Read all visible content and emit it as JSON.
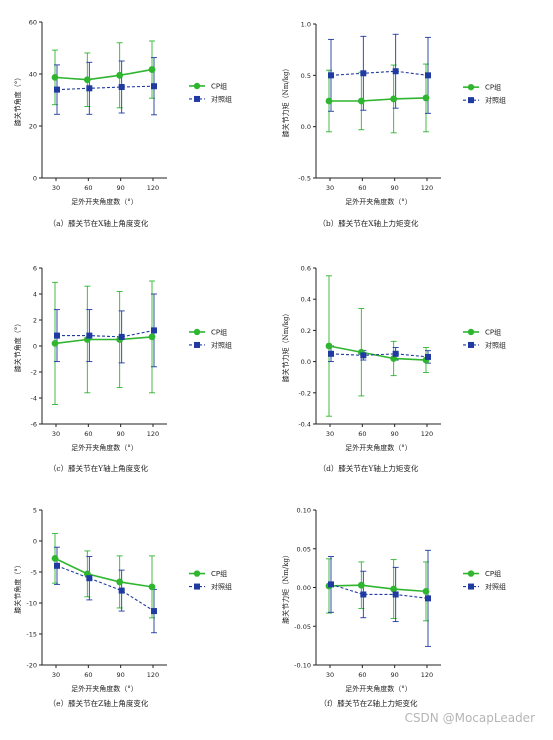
{
  "colors": {
    "cp": "#2fb52f",
    "control": "#1f3aa0",
    "axis": "#222222"
  },
  "legend": {
    "cp": "CP组",
    "control": "对照组"
  },
  "watermark": "CSDN @MocapLeader",
  "chart_data": [
    {
      "type": "line",
      "caption": "（a）膝关节在X轴上角度变化",
      "xlabel": "足外开夹角度数（°）",
      "ylabel": "膝关节角度（°）",
      "categories": [
        "30",
        "60",
        "90",
        "120"
      ],
      "ylim": [
        0,
        60
      ],
      "yticks": [
        0,
        20,
        40,
        60
      ],
      "ytick_labels": [
        "0",
        "20",
        "40",
        "60"
      ],
      "legend_position": "right",
      "series": [
        {
          "name": "CP组",
          "values": [
            38.7,
            37.8,
            39.5,
            41.7
          ],
          "errors": [
            10.5,
            10.3,
            12.5,
            11.0
          ]
        },
        {
          "name": "对照组",
          "values": [
            34.0,
            34.5,
            35.0,
            35.3
          ],
          "errors": [
            9.5,
            10.0,
            10.0,
            11.0
          ]
        }
      ]
    },
    {
      "type": "line",
      "caption": "（b）膝关节在X轴上力矩变化",
      "xlabel": "足外开夹角度数（°）",
      "ylabel": "膝关节力矩（Nm/kg）",
      "categories": [
        "30",
        "60",
        "90",
        "120"
      ],
      "ylim": [
        -0.5,
        1.0
      ],
      "yticks": [
        -0.5,
        0.0,
        0.5,
        1.0
      ],
      "ytick_labels": [
        "-0.5",
        "0.0",
        "0.5",
        "1.0"
      ],
      "legend_position": "right",
      "series": [
        {
          "name": "CP组",
          "values": [
            0.25,
            0.25,
            0.27,
            0.28
          ],
          "errors": [
            0.3,
            0.28,
            0.33,
            0.33
          ]
        },
        {
          "name": "对照组",
          "values": [
            0.5,
            0.52,
            0.54,
            0.5
          ],
          "errors": [
            0.35,
            0.36,
            0.36,
            0.37
          ]
        }
      ]
    },
    {
      "type": "line",
      "caption": "（c）膝关节在Y轴上角度变化",
      "xlabel": "足外开夹角度数（°）",
      "ylabel": "膝关节角度（°）",
      "categories": [
        "30",
        "60",
        "90",
        "120"
      ],
      "ylim": [
        -6,
        6
      ],
      "yticks": [
        -6,
        -4,
        -2,
        0,
        2,
        4,
        6
      ],
      "ytick_labels": [
        "-6",
        "-4",
        "-2",
        "0",
        "2",
        "4",
        "6"
      ],
      "legend_position": "right",
      "series": [
        {
          "name": "CP组",
          "values": [
            0.2,
            0.5,
            0.5,
            0.7
          ],
          "errors": [
            4.7,
            4.1,
            3.7,
            4.3
          ]
        },
        {
          "name": "对照组",
          "values": [
            0.8,
            0.8,
            0.7,
            1.2
          ],
          "errors": [
            2.0,
            2.0,
            2.0,
            2.8
          ]
        }
      ]
    },
    {
      "type": "line",
      "caption": "（d）膝关节在Y轴上力矩变化",
      "xlabel": "足外开夹角度数（°）",
      "ylabel": "膝关节力矩（Nm/kg）",
      "categories": [
        "30",
        "60",
        "90",
        "120"
      ],
      "ylim": [
        -0.4,
        0.6
      ],
      "yticks": [
        -0.4,
        -0.2,
        0.0,
        0.2,
        0.4,
        0.6
      ],
      "ytick_labels": [
        "-0.4",
        "-0.2",
        "0.0",
        "0.2",
        "0.4",
        "0.6"
      ],
      "legend_position": "right",
      "series": [
        {
          "name": "CP组",
          "values": [
            0.1,
            0.06,
            0.02,
            0.01
          ],
          "errors": [
            0.45,
            0.28,
            0.11,
            0.08
          ]
        },
        {
          "name": "对照组",
          "values": [
            0.05,
            0.04,
            0.05,
            0.03
          ],
          "errors": [
            0.05,
            0.03,
            0.04,
            0.04
          ]
        }
      ]
    },
    {
      "type": "line",
      "caption": "（e）膝关节在Z轴上角度变化",
      "xlabel": "足外开夹角度数（°）",
      "ylabel": "膝关节角度（°）",
      "categories": [
        "30",
        "60",
        "90",
        "120"
      ],
      "ylim": [
        -20,
        5
      ],
      "yticks": [
        -20,
        -15,
        -10,
        -5,
        0,
        5
      ],
      "ytick_labels": [
        "-20",
        "-15",
        "-10",
        "-5",
        "0",
        "5"
      ],
      "legend_position": "right",
      "series": [
        {
          "name": "CP组",
          "values": [
            -2.8,
            -5.3,
            -6.6,
            -7.4
          ],
          "errors": [
            4.0,
            3.7,
            4.2,
            5.0
          ]
        },
        {
          "name": "对照组",
          "values": [
            -4.0,
            -6.0,
            -8.0,
            -11.3
          ],
          "errors": [
            3.0,
            3.5,
            3.3,
            3.5
          ]
        }
      ]
    },
    {
      "type": "line",
      "caption": "（f）膝关节在Z轴上力矩变化",
      "xlabel": "足外开夹角度数（°）",
      "ylabel": "膝关节力矩（Nm/kg）",
      "categories": [
        "30",
        "60",
        "90",
        "120"
      ],
      "ylim": [
        -0.1,
        0.1
      ],
      "yticks": [
        -0.1,
        -0.05,
        0.0,
        0.05,
        0.1
      ],
      "ytick_labels": [
        "-0.10",
        "-0.05",
        "0.00",
        "0.05",
        "0.10"
      ],
      "legend_position": "right",
      "series": [
        {
          "name": "CP组",
          "values": [
            0.002,
            0.003,
            -0.002,
            -0.005
          ],
          "errors": [
            0.035,
            0.03,
            0.038,
            0.038
          ]
        },
        {
          "name": "对照组",
          "values": [
            0.004,
            -0.009,
            -0.009,
            -0.014
          ],
          "errors": [
            0.036,
            0.03,
            0.035,
            0.062
          ]
        }
      ]
    }
  ]
}
